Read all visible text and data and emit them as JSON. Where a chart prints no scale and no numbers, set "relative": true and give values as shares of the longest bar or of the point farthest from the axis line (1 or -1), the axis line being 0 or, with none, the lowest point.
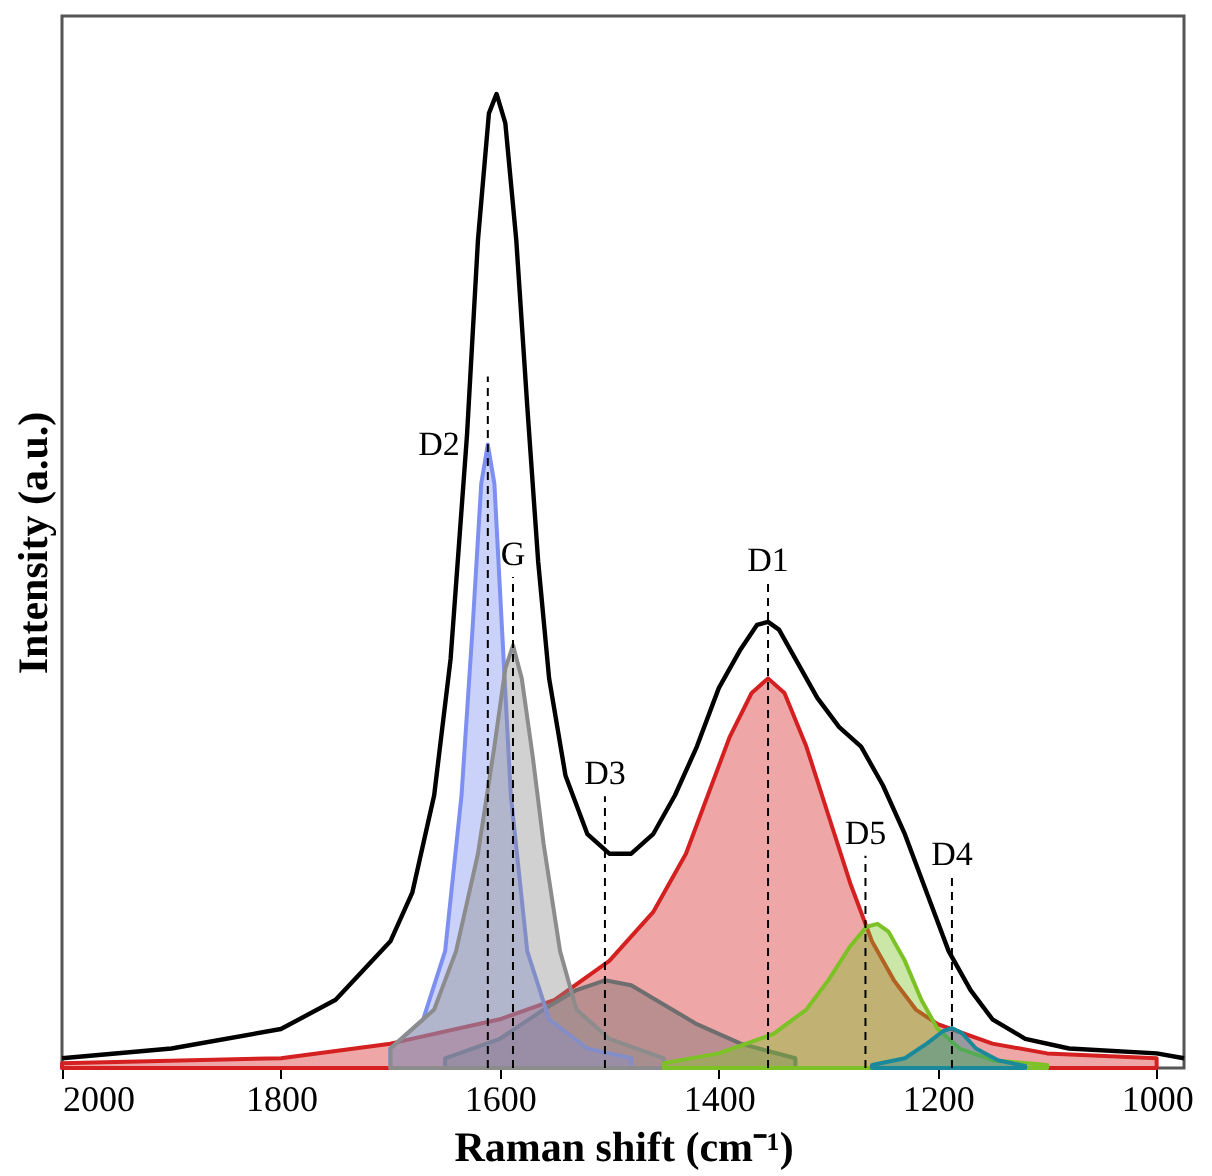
{
  "chart_data": {
    "type": "area",
    "xlabel": "Raman shift (cm⁻¹)",
    "ylabel": "Intensity (a.u.)",
    "relative": true,
    "xlim": [
      2000,
      975
    ],
    "xticks": [
      2000,
      1800,
      1600,
      1400,
      1200,
      1000
    ],
    "grid": false,
    "series": [
      {
        "color": "#d42020",
        "x": [
          2000,
          1800,
          1700,
          1600,
          1550,
          1500,
          1460,
          1430,
          1410,
          1390,
          1370,
          1355,
          1340,
          1320,
          1300,
          1280,
          1260,
          1240,
          1220,
          1200,
          1150,
          1100,
          1000
        ],
        "values": [
          0.005,
          0.01,
          0.025,
          0.05,
          0.07,
          0.11,
          0.16,
          0.22,
          0.28,
          0.34,
          0.385,
          0.4,
          0.385,
          0.33,
          0.26,
          0.19,
          0.13,
          0.09,
          0.06,
          0.045,
          0.025,
          0.015,
          0.01
        ]
      },
      {
        "color": "#6e6e6e",
        "x": [
          1650,
          1600,
          1560,
          1530,
          1504,
          1480,
          1450,
          1420,
          1380,
          1330
        ],
        "values": [
          0.01,
          0.03,
          0.06,
          0.08,
          0.09,
          0.085,
          0.065,
          0.045,
          0.025,
          0.01
        ]
      },
      {
        "color": "#7d8ff0",
        "x": [
          1700,
          1670,
          1650,
          1635,
          1625,
          1617,
          1611,
          1605,
          1598,
          1590,
          1575,
          1555,
          1520,
          1480
        ],
        "values": [
          0.02,
          0.05,
          0.12,
          0.28,
          0.45,
          0.6,
          0.64,
          0.6,
          0.45,
          0.28,
          0.12,
          0.05,
          0.02,
          0.01
        ]
      },
      {
        "color": "#8c8c8c",
        "x": [
          1700,
          1660,
          1640,
          1620,
          1605,
          1595,
          1588,
          1580,
          1570,
          1560,
          1545,
          1530,
          1500,
          1450
        ],
        "values": [
          0.02,
          0.06,
          0.12,
          0.22,
          0.33,
          0.41,
          0.434,
          0.4,
          0.32,
          0.23,
          0.12,
          0.06,
          0.03,
          0.01
        ]
      },
      {
        "color": "#7cc226",
        "x": [
          1450,
          1400,
          1350,
          1320,
          1300,
          1280,
          1265,
          1255,
          1245,
          1230,
          1215,
          1200,
          1180,
          1150,
          1100
        ],
        "values": [
          0.005,
          0.015,
          0.035,
          0.06,
          0.09,
          0.125,
          0.145,
          0.148,
          0.14,
          0.11,
          0.07,
          0.04,
          0.02,
          0.008,
          0.003
        ]
      },
      {
        "color": "#1a8a9a",
        "x": [
          1260,
          1230,
          1210,
          1195,
          1187,
          1178,
          1165,
          1145,
          1120
        ],
        "values": [
          0.003,
          0.01,
          0.025,
          0.038,
          0.041,
          0.036,
          0.02,
          0.008,
          0.002
        ]
      },
      {
        "type": "line",
        "color": "#000000",
        "x": [
          2000,
          1900,
          1800,
          1750,
          1700,
          1680,
          1660,
          1645,
          1630,
          1620,
          1610,
          1603,
          1595,
          1585,
          1575,
          1565,
          1555,
          1540,
          1520,
          1500,
          1480,
          1460,
          1440,
          1420,
          1400,
          1380,
          1365,
          1355,
          1345,
          1330,
          1310,
          1290,
          1270,
          1250,
          1230,
          1210,
          1190,
          1170,
          1150,
          1120,
          1080,
          1000,
          975
        ],
        "values": [
          0.01,
          0.02,
          0.04,
          0.07,
          0.13,
          0.18,
          0.28,
          0.42,
          0.65,
          0.85,
          0.98,
          1.0,
          0.97,
          0.85,
          0.68,
          0.52,
          0.4,
          0.3,
          0.24,
          0.22,
          0.22,
          0.24,
          0.28,
          0.33,
          0.39,
          0.43,
          0.455,
          0.458,
          0.45,
          0.42,
          0.38,
          0.35,
          0.33,
          0.29,
          0.24,
          0.18,
          0.12,
          0.08,
          0.05,
          0.03,
          0.02,
          0.015,
          0.01
        ]
      }
    ],
    "ref_lines": [
      {
        "axis": "x",
        "value": 1611,
        "label": "D2",
        "color": "#000000",
        "line_style": "dashed"
      },
      {
        "axis": "x",
        "value": 1588,
        "label": "G",
        "color": "#000000",
        "line_style": "dashed"
      },
      {
        "axis": "x",
        "value": 1504,
        "label": "D3",
        "color": "#000000",
        "line_style": "dashed"
      },
      {
        "axis": "x",
        "value": 1355,
        "label": "D1",
        "color": "#000000",
        "line_style": "dashed"
      },
      {
        "axis": "x",
        "value": 1266,
        "label": "D5",
        "color": "#000000",
        "line_style": "dashed"
      },
      {
        "axis": "x",
        "value": 1187,
        "label": "D4",
        "color": "#000000",
        "line_style": "dashed"
      }
    ]
  }
}
